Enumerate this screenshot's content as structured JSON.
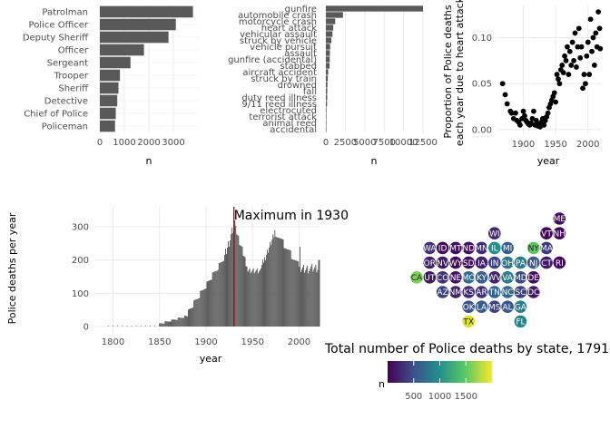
{
  "chart_data": [
    {
      "type": "bar",
      "orientation": "horizontal",
      "categories": [
        "Patrolman",
        "Police Officer",
        "Deputy Sheriff",
        "Officer",
        "Sergeant",
        "Trooper",
        "Sheriff",
        "Detective",
        "Chief of Police",
        "Policeman"
      ],
      "values": [
        3800,
        3100,
        2800,
        1800,
        1250,
        820,
        760,
        710,
        650,
        620
      ],
      "xlabel": "n",
      "ylabel": "",
      "xlim": [
        0,
        4000
      ],
      "xticks": [
        "0",
        "1000",
        "2000",
        "3000"
      ],
      "grid": true
    },
    {
      "type": "bar",
      "orientation": "horizontal",
      "categories": [
        "gunfire",
        "automobile crash",
        "motorcycle crash",
        "heart attack",
        "vehicular assault",
        "struck by vehicle",
        "vehicle pursuit",
        "assault",
        "gunfire (accidental)",
        "stabbed",
        "aircraft accident",
        "struck by train",
        "drowned",
        "fall",
        "duty reed illness",
        "9/11 reed illness",
        "electrocuted",
        "terrorist attack",
        "animal reed",
        "accidental"
      ],
      "values": [
        12500,
        2200,
        1200,
        950,
        850,
        700,
        550,
        520,
        500,
        480,
        300,
        250,
        200,
        180,
        170,
        150,
        80,
        70,
        60,
        40
      ],
      "xlabel": "n",
      "ylabel": "",
      "xlim": [
        0,
        12500
      ],
      "xticks": [
        "0",
        "2500",
        "5000",
        "7500",
        "10000",
        "12500"
      ],
      "grid": true
    },
    {
      "type": "scatter",
      "xlabel": "year",
      "ylabel_lines": [
        "Proportion of Police deaths",
        "each year due to heart attack"
      ],
      "xlim": [
        1860,
        2020
      ],
      "ylim": [
        -0.005,
        0.135
      ],
      "xticks": [
        "1900",
        "1950",
        "2000"
      ],
      "yticks": [
        "0.00",
        "0.05",
        "0.10"
      ],
      "grid": true,
      "points": [
        [
          1868,
          0.05
        ],
        [
          1872,
          0.038
        ],
        [
          1875,
          0.028
        ],
        [
          1880,
          0.02
        ],
        [
          1882,
          0.018
        ],
        [
          1885,
          0.012
        ],
        [
          1888,
          0.018
        ],
        [
          1890,
          0.01
        ],
        [
          1893,
          0.008
        ],
        [
          1895,
          0.005
        ],
        [
          1898,
          0.012
        ],
        [
          1900,
          0.02
        ],
        [
          1902,
          0.015
        ],
        [
          1904,
          0.01
        ],
        [
          1906,
          0.008
        ],
        [
          1908,
          0.006
        ],
        [
          1910,
          0.005
        ],
        [
          1912,
          0.007
        ],
        [
          1914,
          0.012
        ],
        [
          1916,
          0.02
        ],
        [
          1918,
          0.005
        ],
        [
          1920,
          0.01
        ],
        [
          1922,
          0.004
        ],
        [
          1924,
          0.006
        ],
        [
          1926,
          0.003
        ],
        [
          1928,
          0.008
        ],
        [
          1930,
          0.012
        ],
        [
          1932,
          0.005
        ],
        [
          1934,
          0.01
        ],
        [
          1936,
          0.014
        ],
        [
          1938,
          0.018
        ],
        [
          1940,
          0.024
        ],
        [
          1942,
          0.028
        ],
        [
          1944,
          0.032
        ],
        [
          1946,
          0.036
        ],
        [
          1948,
          0.04
        ],
        [
          1950,
          0.03
        ],
        [
          1952,
          0.06
        ],
        [
          1954,
          0.055
        ],
        [
          1956,
          0.05
        ],
        [
          1958,
          0.065
        ],
        [
          1960,
          0.07
        ],
        [
          1962,
          0.062
        ],
        [
          1964,
          0.08
        ],
        [
          1966,
          0.075
        ],
        [
          1968,
          0.09
        ],
        [
          1970,
          0.06
        ],
        [
          1972,
          0.085
        ],
        [
          1974,
          0.07
        ],
        [
          1976,
          0.095
        ],
        [
          1978,
          0.075
        ],
        [
          1980,
          0.105
        ],
        [
          1982,
          0.068
        ],
        [
          1984,
          0.09
        ],
        [
          1986,
          0.11
        ],
        [
          1988,
          0.078
        ],
        [
          1990,
          0.09
        ],
        [
          1992,
          0.045
        ],
        [
          1994,
          0.06
        ],
        [
          1996,
          0.05
        ],
        [
          1998,
          0.08
        ],
        [
          2000,
          0.095
        ],
        [
          2002,
          0.06
        ],
        [
          2004,
          0.12
        ],
        [
          2006,
          0.085
        ],
        [
          2008,
          0.1
        ],
        [
          2010,
          0.07
        ],
        [
          2012,
          0.105
        ],
        [
          2014,
          0.09
        ],
        [
          2016,
          0.128
        ],
        [
          2018,
          0.11
        ],
        [
          2019,
          0.088
        ]
      ]
    },
    {
      "type": "bar",
      "xlabel": "year",
      "ylabel": "Police deaths per year",
      "xlim": [
        1780,
        2022
      ],
      "ylim": [
        0,
        360
      ],
      "xticks": [
        "1800",
        "1850",
        "1900",
        "1950",
        "2000"
      ],
      "yticks": [
        "0",
        "100",
        "200",
        "300"
      ],
      "grid": true,
      "annotation": "Maximum in 1930",
      "reference_line": {
        "year": 1930,
        "color": "#c00000"
      },
      "years_start": 1791,
      "values": []
    },
    {
      "type": "map",
      "title": "Total number of Police deaths by state, 1791-2022",
      "legend_title": "n",
      "legend_ticks": [
        "500",
        "1000",
        "1500"
      ],
      "scale_min": 0,
      "scale_max": 2000,
      "states": [
        {
          "abbr": "ME",
          "col": 11,
          "row": 0,
          "n": 80
        },
        {
          "abbr": "WI",
          "col": 6,
          "row": 1,
          "n": 240
        },
        {
          "abbr": "VT",
          "col": 10,
          "row": 1,
          "n": 30
        },
        {
          "abbr": "NH",
          "col": 11,
          "row": 1,
          "n": 40
        },
        {
          "abbr": "WA",
          "col": 1,
          "row": 2,
          "n": 300
        },
        {
          "abbr": "ID",
          "col": 2,
          "row": 2,
          "n": 60
        },
        {
          "abbr": "MT",
          "col": 3,
          "row": 2,
          "n": 80
        },
        {
          "abbr": "ND",
          "col": 4,
          "row": 2,
          "n": 60
        },
        {
          "abbr": "MN",
          "col": 5,
          "row": 2,
          "n": 260
        },
        {
          "abbr": "IL",
          "col": 6,
          "row": 2,
          "n": 1000
        },
        {
          "abbr": "MI",
          "col": 7,
          "row": 2,
          "n": 600
        },
        {
          "abbr": "NY",
          "col": 9,
          "row": 2,
          "n": 1500
        },
        {
          "abbr": "MA",
          "col": 10,
          "row": 2,
          "n": 350
        },
        {
          "abbr": "OR",
          "col": 1,
          "row": 3,
          "n": 200
        },
        {
          "abbr": "NV",
          "col": 2,
          "row": 3,
          "n": 150
        },
        {
          "abbr": "WY",
          "col": 3,
          "row": 3,
          "n": 60
        },
        {
          "abbr": "SD",
          "col": 4,
          "row": 3,
          "n": 60
        },
        {
          "abbr": "IA",
          "col": 5,
          "row": 3,
          "n": 200
        },
        {
          "abbr": "IN",
          "col": 6,
          "row": 3,
          "n": 400
        },
        {
          "abbr": "OH",
          "col": 7,
          "row": 3,
          "n": 800
        },
        {
          "abbr": "PA",
          "col": 8,
          "row": 3,
          "n": 850
        },
        {
          "abbr": "NJ",
          "col": 9,
          "row": 3,
          "n": 550
        },
        {
          "abbr": "CT",
          "col": 10,
          "row": 3,
          "n": 150
        },
        {
          "abbr": "RI",
          "col": 11,
          "row": 3,
          "n": 50
        },
        {
          "abbr": "CA",
          "col": 0,
          "row": 4,
          "n": 1600
        },
        {
          "abbr": "UT",
          "col": 1,
          "row": 4,
          "n": 150
        },
        {
          "abbr": "CO",
          "col": 2,
          "row": 4,
          "n": 300
        },
        {
          "abbr": "NE",
          "col": 3,
          "row": 4,
          "n": 100
        },
        {
          "abbr": "MO",
          "col": 4,
          "row": 4,
          "n": 700
        },
        {
          "abbr": "KY",
          "col": 5,
          "row": 4,
          "n": 600
        },
        {
          "abbr": "WV",
          "col": 6,
          "row": 4,
          "n": 200
        },
        {
          "abbr": "VA",
          "col": 7,
          "row": 4,
          "n": 850
        },
        {
          "abbr": "MD",
          "col": 8,
          "row": 4,
          "n": 450
        },
        {
          "abbr": "DE",
          "col": 9,
          "row": 4,
          "n": 50
        },
        {
          "abbr": "AZ",
          "col": 2,
          "row": 5,
          "n": 400
        },
        {
          "abbr": "NM",
          "col": 3,
          "row": 5,
          "n": 200
        },
        {
          "abbr": "KS",
          "col": 4,
          "row": 5,
          "n": 260
        },
        {
          "abbr": "AR",
          "col": 5,
          "row": 5,
          "n": 300
        },
        {
          "abbr": "TN",
          "col": 6,
          "row": 5,
          "n": 650
        },
        {
          "abbr": "NC",
          "col": 7,
          "row": 5,
          "n": 700
        },
        {
          "abbr": "SC",
          "col": 8,
          "row": 5,
          "n": 400
        },
        {
          "abbr": "DC",
          "col": 9,
          "row": 5,
          "n": 150
        },
        {
          "abbr": "OK",
          "col": 4,
          "row": 6,
          "n": 500
        },
        {
          "abbr": "LA",
          "col": 5,
          "row": 6,
          "n": 600
        },
        {
          "abbr": "MS",
          "col": 6,
          "row": 6,
          "n": 400
        },
        {
          "abbr": "AL",
          "col": 7,
          "row": 6,
          "n": 550
        },
        {
          "abbr": "GA",
          "col": 8,
          "row": 6,
          "n": 850
        },
        {
          "abbr": "TX",
          "col": 4,
          "row": 7,
          "n": 1900
        },
        {
          "abbr": "FL",
          "col": 8,
          "row": 7,
          "n": 900
        }
      ]
    }
  ]
}
